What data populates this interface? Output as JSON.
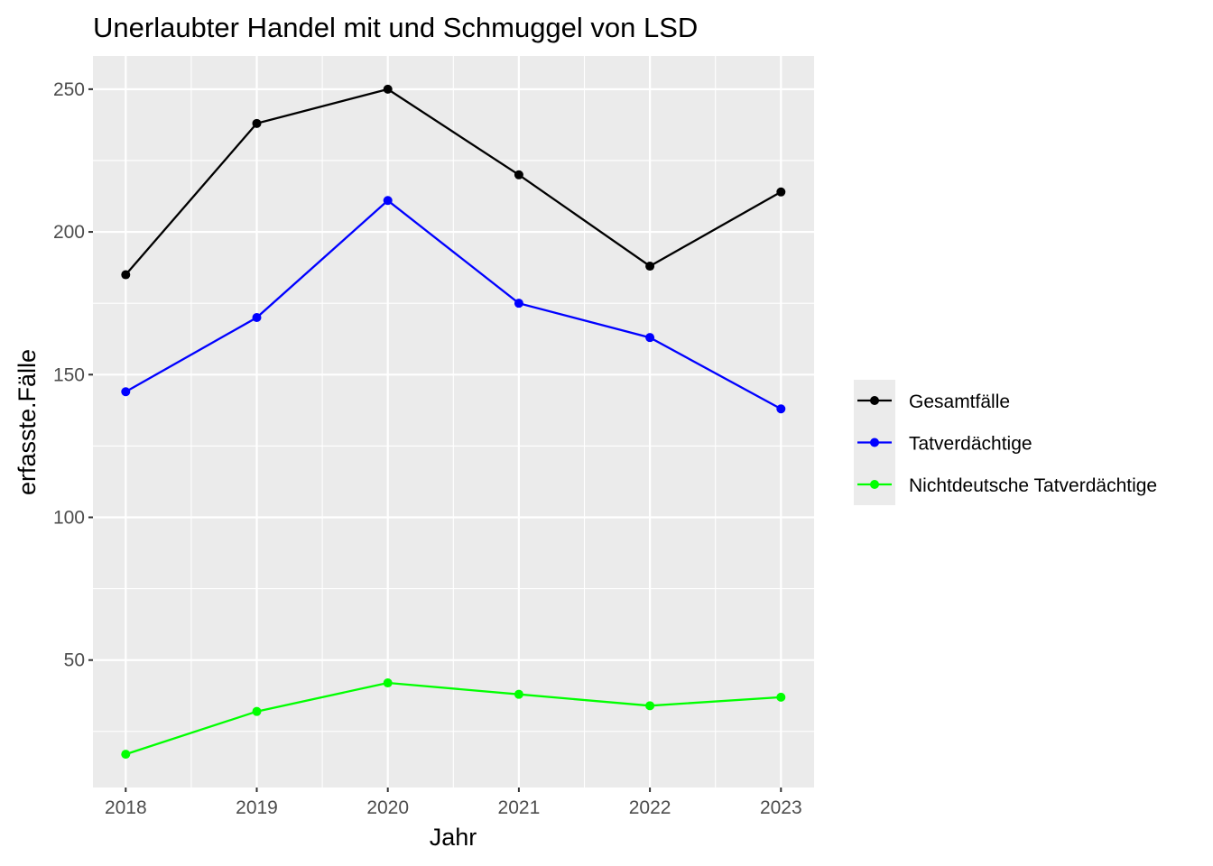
{
  "chart_data": {
    "type": "line",
    "title": "Unerlaubter Handel mit und Schmuggel von LSD",
    "xlabel": "Jahr",
    "ylabel": "erfasste.Fälle",
    "x": [
      "2018",
      "2019",
      "2020",
      "2021",
      "2022",
      "2023"
    ],
    "series": [
      {
        "name": "Gesamtfälle",
        "color": "#000000",
        "values": [
          185,
          238,
          250,
          220,
          188,
          214
        ]
      },
      {
        "name": "Tatverdächtige",
        "color": "#0000ff",
        "values": [
          144,
          170,
          211,
          175,
          163,
          138
        ]
      },
      {
        "name": "Nichtdeutsche Tatverdächtige",
        "color": "#00ff00",
        "values": [
          17,
          32,
          42,
          38,
          34,
          37
        ]
      }
    ],
    "ylim": [
      5.35,
      261.65
    ],
    "yticks": [
      50,
      100,
      150,
      200,
      250
    ],
    "grid": true,
    "legend_position": "right",
    "panel_background": "#ebebeb",
    "grid_color": "#ffffff"
  }
}
